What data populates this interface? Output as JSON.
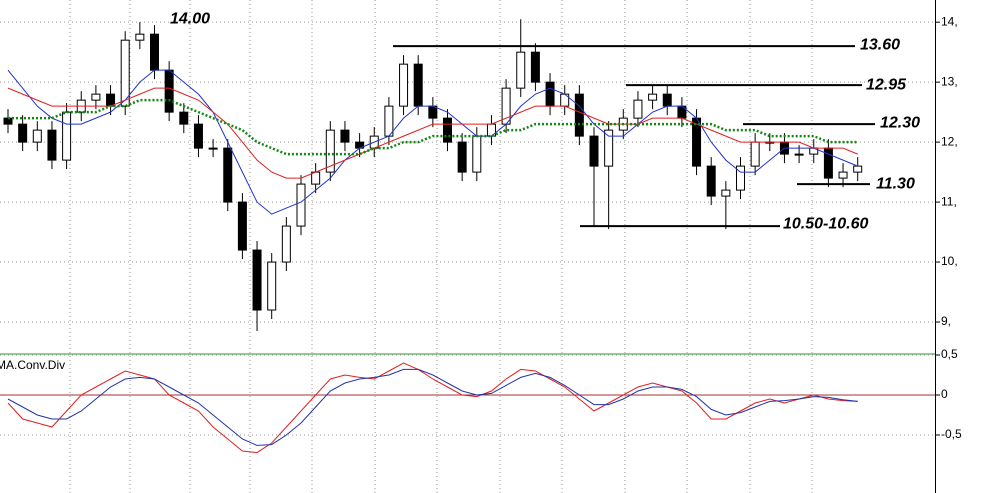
{
  "chart_data": [
    {
      "type": "candlestick",
      "open": [
        12.4,
        12.3,
        12.0,
        12.2,
        11.7,
        12.5,
        12.7,
        12.8,
        12.6,
        13.7,
        13.8,
        13.2,
        12.5,
        12.3,
        11.9,
        11.9,
        11.0,
        10.2,
        9.2,
        10.0,
        10.6,
        11.3,
        11.5,
        12.2,
        12.0,
        11.9,
        12.1,
        12.6,
        13.3,
        12.6,
        12.4,
        12.0,
        11.5,
        12.1,
        12.3,
        12.9,
        13.5,
        13.0,
        12.6,
        12.8,
        12.1,
        11.6,
        12.2,
        12.4,
        12.7,
        12.8,
        12.6,
        12.4,
        11.6,
        11.1,
        11.2,
        11.6,
        12.0,
        12.0,
        11.8,
        11.8,
        11.9,
        11.4,
        11.5
      ],
      "high": [
        12.55,
        12.45,
        12.35,
        12.35,
        12.65,
        12.85,
        12.95,
        12.95,
        13.85,
        14.0,
        13.95,
        13.35,
        12.65,
        12.45,
        12.05,
        12.05,
        11.15,
        10.35,
        10.15,
        10.75,
        11.45,
        11.65,
        12.35,
        12.35,
        12.15,
        12.25,
        12.75,
        13.45,
        13.45,
        12.75,
        12.55,
        12.15,
        12.25,
        12.45,
        13.05,
        14.05,
        13.65,
        13.15,
        12.95,
        12.95,
        12.25,
        12.35,
        12.55,
        12.85,
        12.95,
        12.95,
        12.75,
        12.55,
        11.75,
        11.35,
        11.75,
        12.15,
        12.15,
        12.15,
        11.95,
        12.05,
        12.05,
        11.65,
        11.75
      ],
      "low": [
        12.15,
        11.85,
        11.85,
        11.55,
        11.55,
        12.35,
        12.55,
        12.45,
        12.45,
        13.55,
        13.05,
        12.35,
        12.15,
        11.75,
        11.75,
        10.85,
        10.05,
        8.85,
        9.05,
        9.85,
        10.45,
        11.15,
        11.35,
        11.85,
        11.75,
        11.75,
        11.95,
        12.45,
        12.45,
        12.25,
        11.85,
        11.35,
        11.35,
        11.95,
        12.15,
        12.75,
        12.85,
        12.45,
        12.45,
        11.95,
        10.6,
        10.55,
        12.05,
        12.25,
        12.55,
        12.45,
        12.25,
        11.45,
        10.95,
        10.55,
        11.05,
        11.45,
        11.85,
        11.65,
        11.65,
        11.65,
        11.25,
        11.25,
        11.35
      ],
      "close": [
        12.3,
        12.0,
        12.2,
        11.7,
        12.5,
        12.7,
        12.8,
        12.6,
        13.7,
        13.8,
        13.2,
        12.5,
        12.3,
        11.9,
        11.9,
        11.0,
        10.2,
        9.2,
        10.0,
        10.6,
        11.3,
        11.5,
        12.2,
        12.0,
        11.9,
        12.1,
        12.6,
        13.3,
        12.6,
        12.4,
        12.0,
        11.5,
        12.1,
        12.3,
        12.9,
        13.5,
        13.0,
        12.6,
        12.8,
        12.1,
        11.6,
        12.2,
        12.4,
        12.7,
        12.8,
        12.6,
        12.4,
        11.6,
        11.1,
        11.2,
        11.6,
        12.0,
        12.0,
        11.8,
        11.8,
        11.9,
        11.4,
        11.5,
        11.6
      ],
      "series": [
        {
          "color": "#2233cc",
          "line_style": "solid",
          "values": [
            13.2,
            12.9,
            12.6,
            12.4,
            12.3,
            12.3,
            12.4,
            12.5,
            12.7,
            13.0,
            13.2,
            13.2,
            13.0,
            12.8,
            12.5,
            12.0,
            11.5,
            11.0,
            10.8,
            10.9,
            11.0,
            11.2,
            11.4,
            11.7,
            11.9,
            12.0,
            12.1,
            12.4,
            12.6,
            12.6,
            12.5,
            12.3,
            12.1,
            12.1,
            12.3,
            12.6,
            12.8,
            12.9,
            12.8,
            12.6,
            12.3,
            12.1,
            12.1,
            12.3,
            12.5,
            12.6,
            12.6,
            12.4,
            12.0,
            11.7,
            11.5,
            11.5,
            11.7,
            11.9,
            11.9,
            11.9,
            11.8,
            11.7,
            11.6
          ]
        },
        {
          "color": "#e02020",
          "line_style": "solid",
          "values": [
            12.9,
            12.8,
            12.7,
            12.6,
            12.6,
            12.6,
            12.6,
            12.6,
            12.7,
            12.8,
            12.9,
            12.9,
            12.8,
            12.7,
            12.5,
            12.3,
            12.0,
            11.7,
            11.5,
            11.4,
            11.4,
            11.5,
            11.6,
            11.7,
            11.8,
            11.9,
            12.0,
            12.1,
            12.2,
            12.3,
            12.3,
            12.3,
            12.3,
            12.3,
            12.4,
            12.5,
            12.6,
            12.6,
            12.6,
            12.5,
            12.4,
            12.3,
            12.3,
            12.3,
            12.4,
            12.4,
            12.4,
            12.3,
            12.2,
            12.1,
            12.0,
            12.0,
            12.0,
            12.0,
            12.0,
            11.9,
            11.9,
            11.9,
            11.8
          ]
        },
        {
          "color": "#118811",
          "line_style": "dotted",
          "values": [
            12.4,
            12.4,
            12.4,
            12.4,
            12.5,
            12.5,
            12.5,
            12.6,
            12.6,
            12.7,
            12.7,
            12.7,
            12.6,
            12.5,
            12.4,
            12.3,
            12.2,
            12.0,
            11.9,
            11.8,
            11.8,
            11.8,
            11.8,
            11.8,
            11.8,
            11.9,
            11.9,
            12.0,
            12.0,
            12.1,
            12.1,
            12.1,
            12.1,
            12.1,
            12.2,
            12.2,
            12.3,
            12.3,
            12.3,
            12.3,
            12.3,
            12.3,
            12.3,
            12.3,
            12.3,
            12.3,
            12.3,
            12.3,
            12.3,
            12.2,
            12.2,
            12.2,
            12.1,
            12.1,
            12.1,
            12.1,
            12.0,
            12.0,
            12.0
          ]
        }
      ],
      "annotations": [
        {
          "text": "14.00",
          "value": 14.0
        },
        {
          "text": "13.60",
          "value": 13.6
        },
        {
          "text": "12.95",
          "value": 12.95
        },
        {
          "text": "12.30",
          "value": 12.3
        },
        {
          "text": "11.30",
          "value": 11.3
        },
        {
          "text": "10.50-10.60",
          "value": 10.6
        }
      ],
      "ylim": [
        8.5,
        14.37
      ],
      "yticks": [
        {
          "value": 9,
          "label": "9,"
        },
        {
          "value": 10,
          "label": "10,"
        },
        {
          "value": 11,
          "label": "11,"
        },
        {
          "value": 12,
          "label": "12,"
        },
        {
          "value": 13,
          "label": "13,"
        },
        {
          "value": 14,
          "label": "14,"
        }
      ],
      "grid": true
    },
    {
      "type": "line",
      "title": "MA.Conv.Div",
      "series": [
        {
          "color": "#e02020",
          "values": [
            -0.1,
            -0.3,
            -0.35,
            -0.4,
            -0.2,
            0.0,
            0.1,
            0.2,
            0.3,
            0.25,
            0.2,
            0.0,
            -0.1,
            -0.2,
            -0.4,
            -0.55,
            -0.7,
            -0.72,
            -0.6,
            -0.4,
            -0.2,
            0.0,
            0.2,
            0.25,
            0.22,
            0.2,
            0.3,
            0.4,
            0.32,
            0.2,
            0.1,
            0.0,
            -0.02,
            0.05,
            0.2,
            0.32,
            0.3,
            0.2,
            0.1,
            -0.05,
            -0.2,
            -0.1,
            0.0,
            0.1,
            0.15,
            0.1,
            0.05,
            -0.1,
            -0.3,
            -0.3,
            -0.2,
            -0.1,
            -0.05,
            -0.1,
            -0.05,
            0.0,
            -0.05,
            -0.07,
            -0.08
          ]
        },
        {
          "color": "#2233aa",
          "values": [
            -0.05,
            -0.15,
            -0.25,
            -0.3,
            -0.3,
            -0.2,
            -0.05,
            0.1,
            0.2,
            0.22,
            0.2,
            0.1,
            0.0,
            -0.1,
            -0.25,
            -0.4,
            -0.55,
            -0.63,
            -0.62,
            -0.5,
            -0.35,
            -0.15,
            0.05,
            0.15,
            0.2,
            0.22,
            0.25,
            0.32,
            0.32,
            0.25,
            0.15,
            0.05,
            0.0,
            0.02,
            0.12,
            0.22,
            0.27,
            0.22,
            0.12,
            0.0,
            -0.12,
            -0.12,
            -0.05,
            0.05,
            0.1,
            0.1,
            0.07,
            -0.02,
            -0.18,
            -0.25,
            -0.22,
            -0.15,
            -0.08,
            -0.07,
            -0.05,
            -0.02,
            -0.03,
            -0.06,
            -0.08
          ]
        }
      ],
      "ylim": [
        -1.225,
        0.5
      ],
      "yticks": [
        {
          "value": -0.5,
          "label": "-0,5"
        },
        0,
        {
          "value": 0.5,
          "label": "0,5"
        }
      ],
      "grid": true
    }
  ]
}
